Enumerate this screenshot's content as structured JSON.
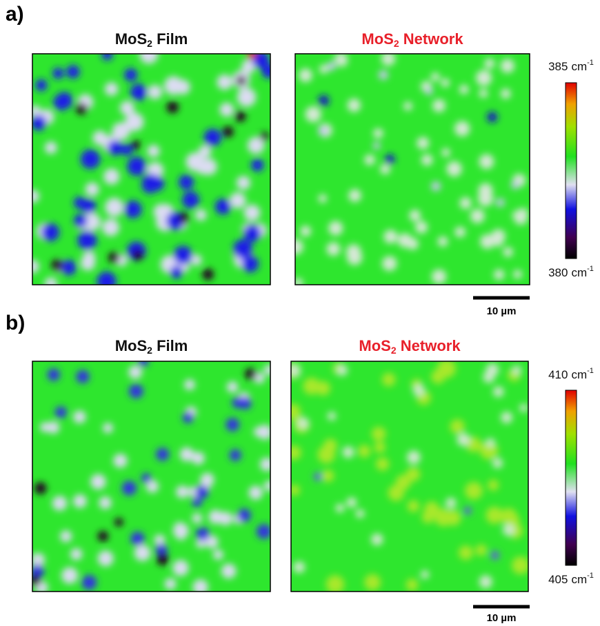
{
  "panels": [
    {
      "label": "a)",
      "maps": [
        {
          "title": {
            "prefix": "MoS",
            "sub": "2",
            "suffix": " Film"
          }
        },
        {
          "title": {
            "prefix": "MoS",
            "sub": "2",
            "suffix": " Network"
          }
        }
      ],
      "colorbar": {
        "max": {
          "value": 385,
          "unit": "cm",
          "sup": "-1"
        },
        "min": {
          "value": 380,
          "unit": "cm",
          "sup": "-1"
        }
      },
      "scalebar": "10 µm"
    },
    {
      "label": "b)",
      "maps": [
        {
          "title": {
            "prefix": "MoS",
            "sub": "2",
            "suffix": " Film"
          }
        },
        {
          "title": {
            "prefix": "MoS",
            "sub": "2",
            "suffix": " Network"
          }
        }
      ],
      "colorbar": {
        "max": {
          "value": 410,
          "unit": "cm",
          "sup": "-1"
        },
        "min": {
          "value": 405,
          "unit": "cm",
          "sup": "-1"
        }
      },
      "scalebar": "10 µm"
    }
  ]
}
